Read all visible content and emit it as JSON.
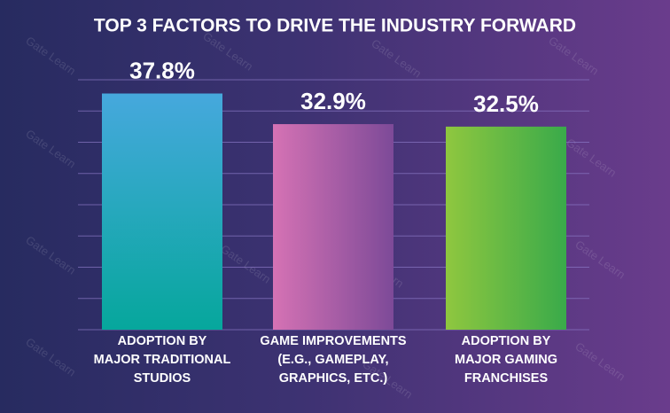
{
  "chart_data": {
    "type": "bar",
    "title": "TOP 3 FACTORS TO DRIVE THE INDUSTRY FORWARD",
    "categories": [
      "ADOPTION BY\nMAJOR TRADITIONAL\nSTUDIOS",
      "GAME IMPROVEMENTS\n(E.G., GAMEPLAY,\nGRAPHICS, ETC.)",
      "ADOPTION BY\nMAJOR GAMING\nFRANCHISES"
    ],
    "values": [
      37.8,
      32.9,
      32.5
    ],
    "value_labels": [
      "37.8%",
      "32.9%",
      "32.5%"
    ],
    "colors": [
      [
        "#46a8dd",
        "#06a79c"
      ],
      [
        "#d572b4",
        "#7d4a98"
      ],
      [
        "#8fc73f",
        "#39aa4a"
      ]
    ],
    "gradient": [
      "vertical",
      "horizontal",
      "horizontal"
    ],
    "ylim": [
      0,
      40
    ],
    "yticks": [
      0,
      5,
      10,
      15,
      20,
      25,
      30,
      35,
      40
    ],
    "grid": true,
    "watermark": "Gate Learn"
  }
}
